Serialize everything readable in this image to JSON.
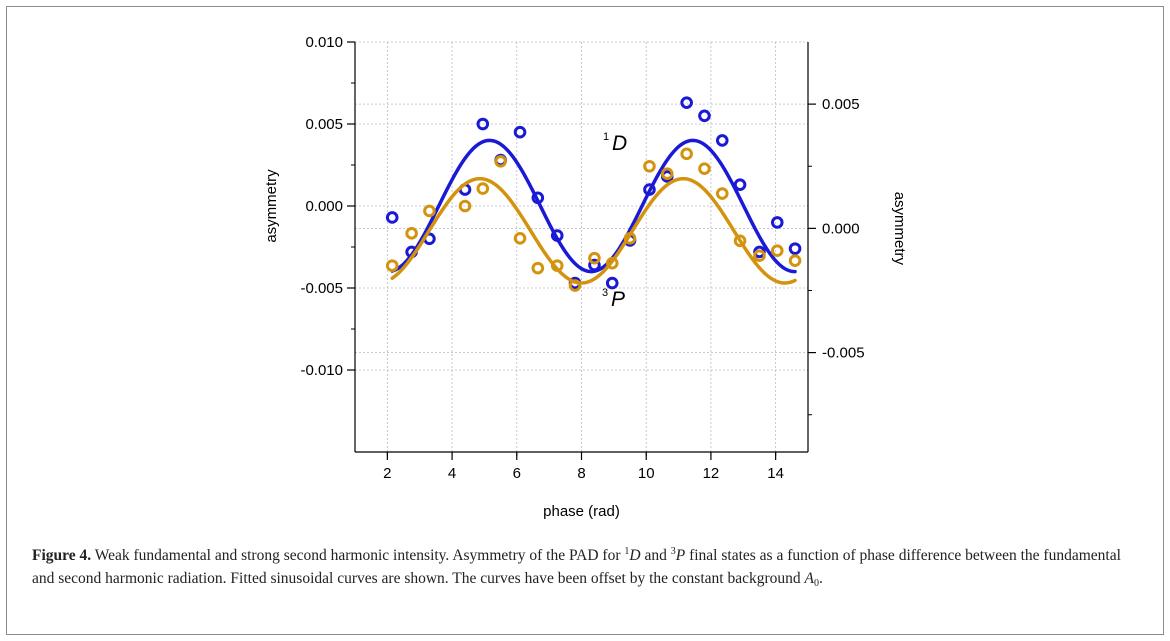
{
  "chart_data": {
    "type": "scatter",
    "xlabel": "phase (rad)",
    "xlim": [
      1,
      15
    ],
    "xticks": [
      2,
      4,
      6,
      8,
      10,
      12,
      14
    ],
    "left_axis": {
      "label": "asymmetry",
      "ylim": [
        -0.015,
        0.01
      ],
      "ticks": [
        "0.010",
        "0.005",
        "0.000",
        "-0.005",
        "-0.010"
      ],
      "tick_values": [
        0.01,
        0.005,
        0.0,
        -0.005,
        -0.01
      ]
    },
    "right_axis": {
      "label": "asymmetry",
      "ylim": [
        -0.009,
        0.0075
      ],
      "ticks": [
        "0.005",
        "0.000",
        "-0.005"
      ],
      "tick_values": [
        0.005,
        0.0,
        -0.005
      ]
    },
    "grid": true,
    "series": [
      {
        "name": "1D",
        "label_main": "D",
        "label_sup": "1",
        "axis": "left",
        "color": "#1a1ad6",
        "x": [
          2.15,
          2.75,
          3.3,
          4.4,
          4.95,
          5.5,
          6.1,
          6.65,
          7.25,
          7.8,
          8.4,
          8.95,
          9.5,
          10.1,
          10.65,
          11.25,
          11.8,
          12.35,
          12.9,
          13.5,
          14.05,
          14.6
        ],
        "y": [
          -0.0007,
          -0.0028,
          -0.002,
          0.001,
          0.005,
          0.0028,
          0.0045,
          0.0005,
          -0.0018,
          -0.0047,
          -0.0036,
          -0.0047,
          -0.0021,
          0.001,
          0.0018,
          0.0063,
          0.0055,
          0.004,
          0.0013,
          -0.0028,
          -0.001,
          -0.0026
        ],
        "fit": {
          "amplitude": 0.004,
          "center": 8.3,
          "period": 6.2832
        }
      },
      {
        "name": "3P",
        "label_main": "P",
        "label_sup": "3",
        "axis": "right",
        "color": "#d4930f",
        "x": [
          2.15,
          2.75,
          3.3,
          4.4,
          4.95,
          5.5,
          6.1,
          6.65,
          7.25,
          7.8,
          8.4,
          8.95,
          9.5,
          10.1,
          10.65,
          11.25,
          11.8,
          12.35,
          12.9,
          13.5,
          14.05,
          14.6
        ],
        "y": [
          -0.0015,
          -0.0002,
          0.0007,
          0.0009,
          0.0016,
          0.0027,
          -0.0004,
          -0.0016,
          -0.0015,
          -0.0023,
          -0.0012,
          -0.0014,
          -0.0004,
          0.0025,
          0.0022,
          0.003,
          0.0024,
          0.0014,
          -0.0005,
          -0.0011,
          -0.0009,
          -0.0013
        ],
        "fit": {
          "amplitude": 0.0021,
          "center": 8.0,
          "offset": -0.0001,
          "period": 6.2832
        }
      }
    ]
  },
  "caption": {
    "label": "Figure 4.",
    "text_1": " Weak fundamental and strong second harmonic intensity. Asymmetry of the PAD for ",
    "sup_1": "1",
    "state_1": "D",
    "text_2": " and ",
    "sup_2": "3",
    "state_2": "P",
    "text_3": " final states as a function of phase difference between the fundamental and second harmonic radiation. Fitted sinusoidal curves are shown. The curves have been offset by the constant background ",
    "symbol": "A",
    "sub": "0",
    "text_4": "."
  }
}
